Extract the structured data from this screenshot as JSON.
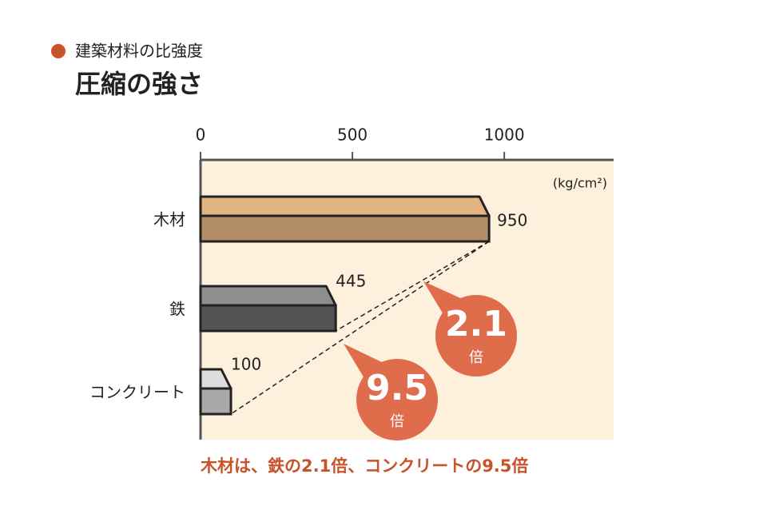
{
  "chart_data": {
    "type": "bar",
    "subtitle": "建築材料の比強度",
    "title": "圧縮の強さ",
    "unit": "(kg/cm²)",
    "categories": [
      "木材",
      "鉄",
      "コンクリート"
    ],
    "values": [
      950,
      445,
      100
    ],
    "colors": [
      "#b38d66",
      "#545454",
      "#a8a8a8"
    ],
    "top_colors": [
      "#e3b483",
      "#8e8e8e",
      "#dcdcdc"
    ],
    "xlim": [
      0,
      1360
    ],
    "xticks": [
      0,
      500,
      1000
    ],
    "annotations": [
      {
        "text": "2.1",
        "sub": "倍"
      },
      {
        "text": "9.5",
        "sub": "倍"
      }
    ],
    "caption": "木材は、鉄の2.1倍、コンクリートの9.5倍"
  }
}
